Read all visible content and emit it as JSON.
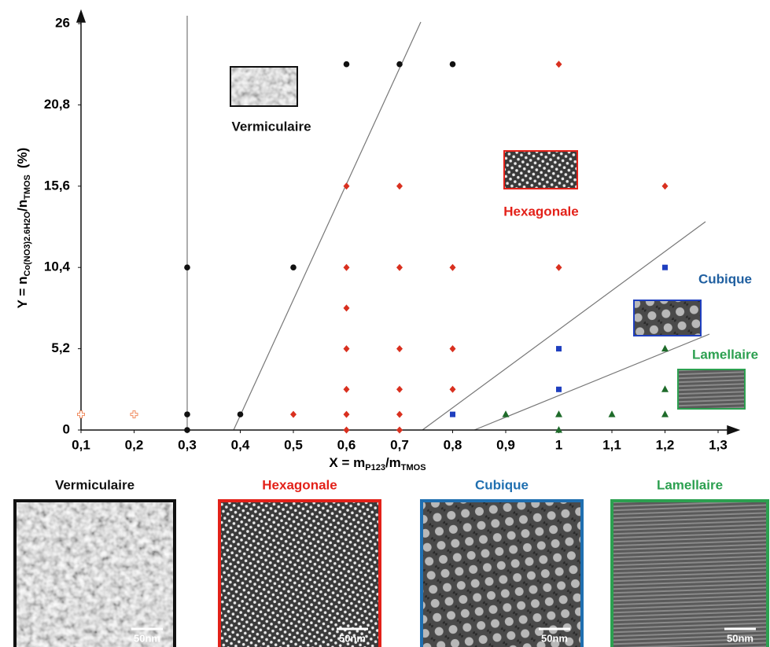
{
  "chart_data": {
    "type": "scatter",
    "xlabel_parts": [
      "X = m",
      "P123",
      "/m",
      "TMOS"
    ],
    "ylabel_parts": [
      "Y = n",
      "Co(NO3)2.6H2O",
      "/n",
      "TMOS",
      "(%)"
    ],
    "xlim": [
      0.1,
      1.33
    ],
    "ylim": [
      0,
      26
    ],
    "xticks": [
      {
        "value": 0.1,
        "label": "0,1"
      },
      {
        "value": 0.2,
        "label": "0,2"
      },
      {
        "value": 0.3,
        "label": "0,3"
      },
      {
        "value": 0.4,
        "label": "0,4"
      },
      {
        "value": 0.5,
        "label": "0,5"
      },
      {
        "value": 0.6,
        "label": "0,6"
      },
      {
        "value": 0.7,
        "label": "0,7"
      },
      {
        "value": 0.8,
        "label": "0,8"
      },
      {
        "value": 0.9,
        "label": "0,9"
      },
      1,
      {
        "value": 1.1,
        "label": "1,1"
      },
      {
        "value": 1.2,
        "label": "1,2"
      },
      {
        "value": 1.3,
        "label": "1,3"
      }
    ],
    "yticks": [
      0,
      {
        "value": 5.2,
        "label": "5,2"
      },
      {
        "value": 10.4,
        "label": "10,4"
      },
      {
        "value": 15.6,
        "label": "15,6"
      },
      {
        "value": 20.8,
        "label": "20,8"
      },
      26
    ],
    "series": [
      {
        "name": "Vermiculaire",
        "marker": "circle",
        "color": "#111111",
        "label_color": "#111111",
        "x": [
          0.3,
          0.3,
          0.4,
          0.3,
          0.5,
          0.6,
          0.7,
          0.8
        ],
        "values": [
          0,
          1,
          1,
          10.4,
          10.4,
          23.4,
          23.4,
          23.4
        ]
      },
      {
        "marker": "cross",
        "color": "#f08a5d",
        "x": [
          0.1,
          0.2
        ],
        "values": [
          1,
          1
        ]
      },
      {
        "name": "Hexagonale",
        "marker": "diamond",
        "color": "#d9301f",
        "label_color": "#e32119",
        "x": [
          0.5,
          0.6,
          0.7,
          0.6,
          0.7,
          0.6,
          0.7,
          0.8,
          0.6,
          0.7,
          0.8,
          0.6,
          0.6,
          0.7,
          0.8,
          1,
          0.6,
          0.7,
          1.2,
          1
        ],
        "values": [
          1,
          1,
          1,
          0,
          0,
          2.6,
          2.6,
          2.6,
          5.2,
          5.2,
          5.2,
          7.8,
          10.4,
          10.4,
          10.4,
          10.4,
          15.6,
          15.6,
          15.6,
          23.4
        ]
      },
      {
        "name": "Cubique",
        "marker": "square",
        "color": "#1f3fbf",
        "label_color": "#1f5fa0",
        "x": [
          0.8,
          1,
          1,
          1.2
        ],
        "values": [
          1,
          2.6,
          5.2,
          10.4
        ]
      },
      {
        "name": "Lamellaire",
        "marker": "triangle",
        "color": "#1e6b2a",
        "label_color": "#2ca050",
        "x": [
          0.9,
          1,
          1.1,
          1.2,
          1,
          1.2,
          1.2
        ],
        "values": [
          1,
          1,
          1,
          1,
          0,
          2.6,
          5.2
        ]
      }
    ]
  },
  "panels": [
    {
      "title": "Vermiculaire",
      "scale": "50nm",
      "color": "#111111",
      "title_color": "#111111"
    },
    {
      "title": "Hexagonale",
      "scale": "50nm",
      "color": "#e32119",
      "title_color": "#e32119"
    },
    {
      "title": "Cubique",
      "scale": "50nm",
      "color": "#1f6fb0",
      "title_color": "#1f6fb0"
    },
    {
      "title": "Lamellaire",
      "scale": "50nm",
      "color": "#2ca050",
      "title_color": "#2ca050"
    }
  ]
}
